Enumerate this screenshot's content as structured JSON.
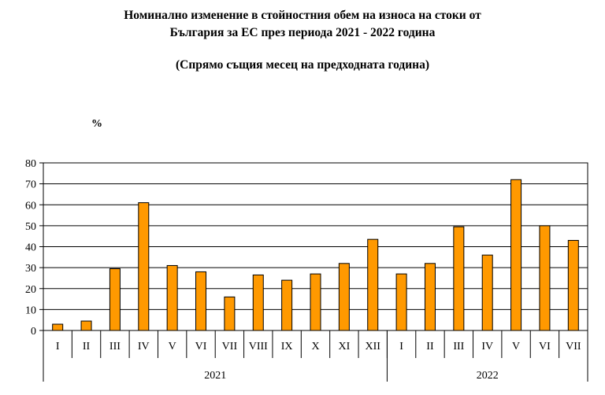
{
  "title_line1": "Номинално изменение в стойностния обем на износа на стоки от",
  "title_line2": "България за ЕС през периода 2021 - 2022 година",
  "subtitle": "(Спрямо същия месец на предходната година)",
  "unit_label": "%",
  "chart_data": {
    "type": "bar",
    "title": "Номинално изменение в стойностния обем на износа на стоки от България за ЕС през периода 2021 - 2022 година",
    "subtitle": "(Спрямо същия месец на предходната година)",
    "ylabel": "%",
    "ylim": [
      0,
      80
    ],
    "yticks": [
      0,
      10,
      20,
      30,
      40,
      50,
      60,
      70,
      80
    ],
    "grid": true,
    "legend": "none",
    "bar_color": "#FF9900",
    "categories": [
      "I",
      "II",
      "III",
      "IV",
      "V",
      "VI",
      "VII",
      "VIII",
      "IX",
      "X",
      "XI",
      "XII",
      "I",
      "II",
      "III",
      "IV",
      "V",
      "VI",
      "VII"
    ],
    "groups": [
      {
        "label": "2021",
        "count": 12
      },
      {
        "label": "2022",
        "count": 7
      }
    ],
    "values": [
      3.0,
      4.5,
      29.5,
      61.0,
      31.0,
      28.0,
      16.0,
      26.5,
      24.0,
      27.0,
      32.0,
      43.5,
      27.0,
      32.0,
      49.5,
      36.0,
      72.0,
      50.0,
      43.0
    ]
  }
}
